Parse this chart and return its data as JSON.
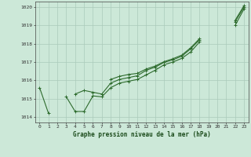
{
  "x": [
    0,
    1,
    2,
    3,
    4,
    5,
    6,
    7,
    8,
    9,
    10,
    11,
    12,
    13,
    14,
    15,
    16,
    17,
    18,
    19,
    20,
    21,
    22,
    23
  ],
  "line1": [
    1015.6,
    1014.2,
    null,
    1015.1,
    1014.3,
    1014.3,
    1015.15,
    1015.1,
    1015.6,
    1015.85,
    1015.95,
    1016.05,
    1016.3,
    1016.55,
    1016.85,
    1017.0,
    1017.2,
    1017.55,
    1018.1,
    null,
    null,
    null,
    1019.0,
    1019.9
  ],
  "line2": [
    null,
    null,
    null,
    null,
    1015.25,
    1015.45,
    1015.35,
    1015.25,
    1015.85,
    1016.05,
    1016.15,
    1016.25,
    1016.55,
    1016.72,
    1016.98,
    1017.12,
    1017.32,
    1017.72,
    1018.22,
    null,
    null,
    null,
    1019.2,
    1020.0
  ],
  "line3": [
    null,
    null,
    null,
    null,
    null,
    null,
    null,
    null,
    1016.05,
    1016.22,
    1016.32,
    1016.38,
    1016.62,
    1016.78,
    1017.02,
    1017.18,
    1017.38,
    1017.78,
    1018.28,
    null,
    null,
    null,
    1019.28,
    1020.08
  ],
  "ylim": [
    1013.7,
    1020.3
  ],
  "yticks": [
    1014,
    1015,
    1016,
    1017,
    1018,
    1019,
    1020
  ],
  "xticks": [
    0,
    1,
    2,
    3,
    4,
    5,
    6,
    7,
    8,
    9,
    10,
    11,
    12,
    13,
    14,
    15,
    16,
    17,
    18,
    19,
    20,
    21,
    22,
    23
  ],
  "line_color": "#2d6b2d",
  "bg_color": "#cce8d8",
  "grid_color": "#aacaba",
  "xlabel": "Graphe pression niveau de la mer (hPa)",
  "marker": "+",
  "linewidth": 0.8,
  "markersize": 3.5
}
